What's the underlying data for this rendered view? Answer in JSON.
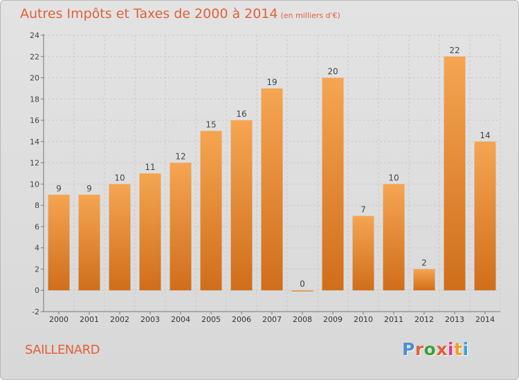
{
  "header": {
    "title": "Autres Impôts et Taxes de 2000 à 2014",
    "unit": "(en milliers d'€)"
  },
  "footer": {
    "commune": "SAILLENARD",
    "logo_text": "Proxiti"
  },
  "colors": {
    "title": "#e0613a",
    "bar_top": "#f5a552",
    "bar_bottom": "#d06e1a",
    "logo_letters": [
      "#4a8fd6",
      "#e0613a",
      "#3aa13a",
      "#e0613a",
      "#d63a8f",
      "#f0a020",
      "#3aa1d6"
    ]
  },
  "chart_data": {
    "type": "bar",
    "categories": [
      "2000",
      "2001",
      "2002",
      "2003",
      "2004",
      "2005",
      "2006",
      "2007",
      "2008",
      "2009",
      "2010",
      "2011",
      "2012",
      "2013",
      "2014"
    ],
    "values": [
      9,
      9,
      10,
      11,
      12,
      15,
      16,
      19,
      0,
      20,
      7,
      10,
      2,
      22,
      14
    ],
    "ylim": [
      -2,
      24
    ],
    "yticks": [
      -2,
      0,
      2,
      4,
      6,
      8,
      10,
      12,
      14,
      16,
      18,
      20,
      22,
      24
    ],
    "grid": true,
    "legend": "none"
  }
}
